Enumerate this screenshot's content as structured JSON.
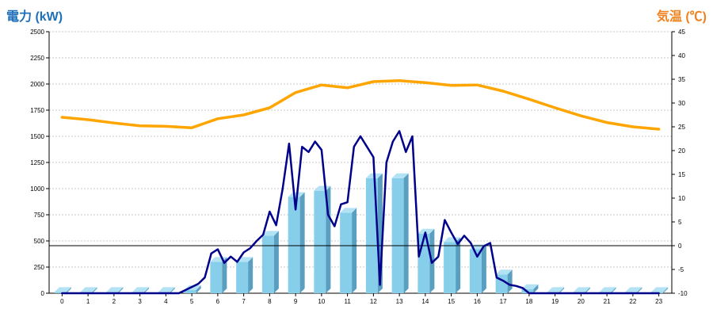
{
  "chart_data": {
    "type": "bar+line",
    "left_title": "電力 (kW)",
    "right_title": "気温 (℃)",
    "categories": [
      "0",
      "1",
      "2",
      "3",
      "4",
      "5",
      "6",
      "7",
      "8",
      "9",
      "10",
      "11",
      "12",
      "13",
      "14",
      "15",
      "16",
      "17",
      "18",
      "19",
      "20",
      "21",
      "22",
      "23"
    ],
    "y_left": {
      "min": 0,
      "max": 2500,
      "step": 250,
      "tick_labels": [
        "0",
        "250",
        "500",
        "750",
        "1000",
        "1250",
        "1500",
        "1750",
        "2000",
        "2250",
        "2500"
      ]
    },
    "y_right": {
      "min": -10,
      "max": 45,
      "step": 5,
      "tick_labels": [
        "-10",
        "-5",
        "0",
        "5",
        "10",
        "15",
        "20",
        "25",
        "30",
        "35",
        "40",
        "45"
      ]
    },
    "grid": true,
    "colors": {
      "bar_front": "#87ceeb",
      "bar_side": "#5a9fc0",
      "bar_top": "#b4e2f5",
      "power_line": "#00008b",
      "temp_line": "#ffa500",
      "title_left": "#1e6fb8",
      "title_right": "#f0821e",
      "zero_line": "#000000"
    },
    "series": [
      {
        "axis": "left",
        "style": "bar",
        "values": [
          12,
          12,
          12,
          12,
          12,
          30,
          300,
          300,
          550,
          920,
          980,
          770,
          1100,
          1100,
          570,
          490,
          420,
          180,
          40,
          12,
          12,
          12,
          12,
          12
        ]
      },
      {
        "axis": "left",
        "style": "line",
        "x": [
          0,
          0.5,
          1,
          1.5,
          2,
          2.5,
          3,
          3.5,
          4,
          4.5,
          5,
          5.25,
          5.5,
          5.75,
          6,
          6.25,
          6.5,
          6.75,
          7,
          7.25,
          7.5,
          7.75,
          8,
          8.25,
          8.5,
          8.75,
          9,
          9.25,
          9.5,
          9.75,
          10,
          10.25,
          10.5,
          10.75,
          11,
          11.25,
          11.5,
          11.75,
          12,
          12.25,
          12.5,
          12.75,
          13,
          13.25,
          13.5,
          13.75,
          14,
          14.25,
          14.5,
          14.75,
          15,
          15.25,
          15.5,
          15.75,
          16,
          16.25,
          16.5,
          16.75,
          17,
          17.25,
          17.5,
          17.75,
          18,
          18.5,
          19,
          20,
          21,
          22,
          23
        ],
        "y": [
          0,
          0,
          0,
          0,
          0,
          0,
          0,
          0,
          0,
          0,
          60,
          90,
          150,
          380,
          420,
          290,
          350,
          300,
          390,
          430,
          500,
          560,
          780,
          650,
          1000,
          1430,
          800,
          1400,
          1350,
          1450,
          1370,
          750,
          640,
          850,
          870,
          1400,
          1500,
          1400,
          1300,
          80,
          1250,
          1450,
          1550,
          1350,
          1500,
          350,
          580,
          290,
          350,
          700,
          580,
          470,
          550,
          480,
          350,
          450,
          480,
          150,
          120,
          80,
          70,
          50,
          0,
          0,
          0,
          0,
          0,
          0,
          0
        ]
      },
      {
        "axis": "right",
        "style": "line",
        "x": [
          0,
          1,
          2,
          3,
          4,
          5,
          6,
          7,
          8,
          9,
          10,
          11,
          12,
          13,
          14,
          15,
          16,
          17,
          18,
          19,
          20,
          21,
          22,
          23
        ],
        "y": [
          27,
          26.5,
          25.8,
          25.2,
          25.1,
          24.8,
          26.7,
          27.5,
          29,
          32.2,
          33.8,
          33.2,
          34.5,
          34.7,
          34.3,
          33.7,
          33.8,
          32.5,
          30.8,
          29,
          27.3,
          25.9,
          25,
          24.5
        ]
      }
    ]
  }
}
